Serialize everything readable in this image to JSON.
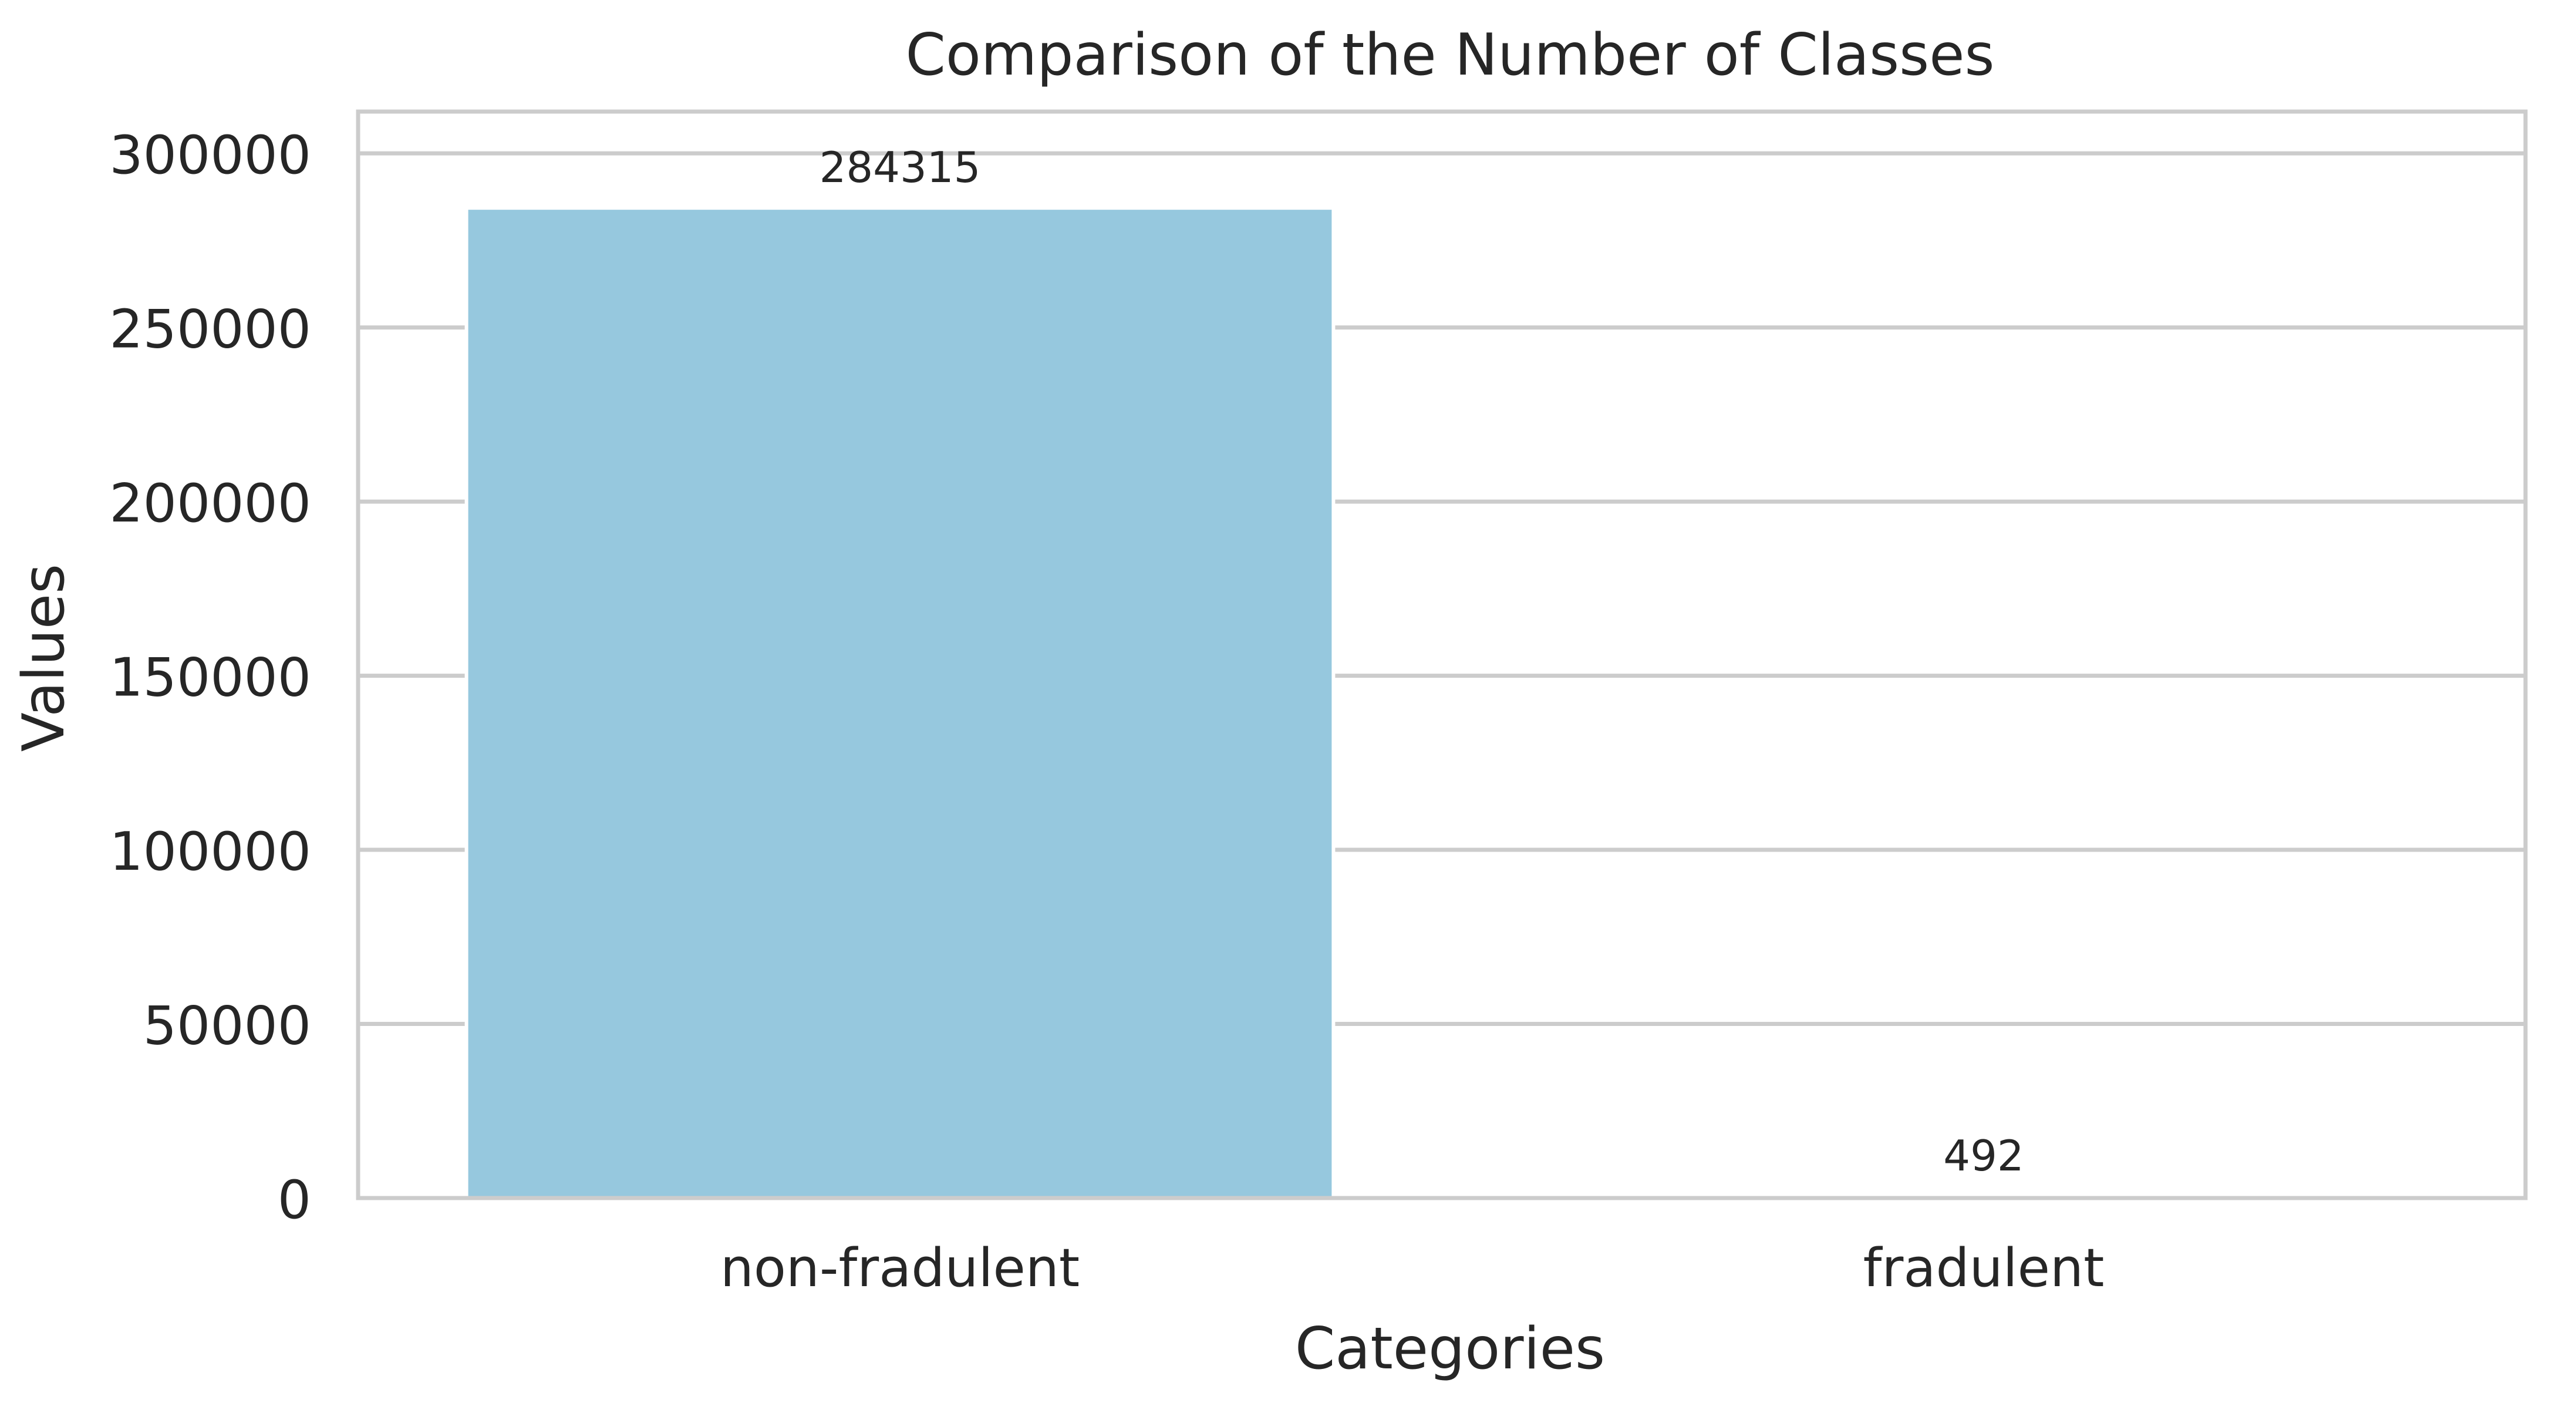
{
  "chart_data": {
    "type": "bar",
    "title": "Comparison of the Number of Classes",
    "xlabel": "Categories",
    "ylabel": "Values",
    "categories": [
      "non-fradulent",
      "fradulent"
    ],
    "values": [
      284315,
      492
    ],
    "value_labels": [
      "284315",
      "492"
    ],
    "ylim": [
      0,
      312000
    ],
    "yticks": [
      0,
      50000,
      100000,
      150000,
      200000,
      250000,
      300000
    ],
    "ytick_labels": [
      "0",
      "50000",
      "100000",
      "150000",
      "200000",
      "250000",
      "300000"
    ],
    "bar_color": "#96c8de",
    "grid": "horizontal",
    "legend": "none"
  }
}
